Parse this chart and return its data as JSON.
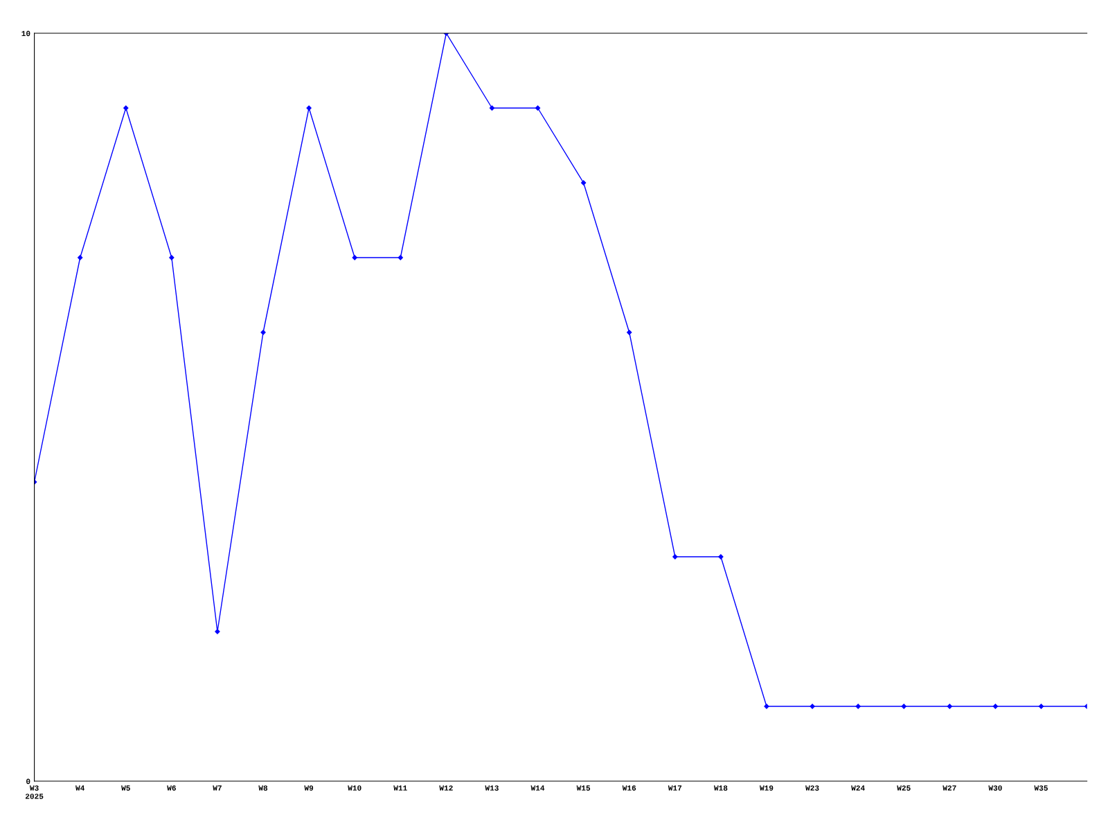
{
  "chart_data": {
    "type": "line",
    "categories": [
      "W3\n2025",
      "W4",
      "W5",
      "W6",
      "W7",
      "W8",
      "W9",
      "W10",
      "W11",
      "W12",
      "W13",
      "W14",
      "W15",
      "W16",
      "W17",
      "W18",
      "W19",
      "W23",
      "W24",
      "W25",
      "W27",
      "W30",
      "W35",
      null
    ],
    "series": [
      {
        "color": "#0000ff",
        "values": [
          4,
          7,
          9,
          7,
          2,
          6,
          9,
          7,
          7,
          10,
          9,
          9,
          8,
          6,
          3,
          3,
          1,
          1,
          1,
          1,
          1,
          1,
          1,
          1
        ]
      }
    ],
    "ylim": [
      0,
      10
    ],
    "yticks": [
      0,
      10
    ],
    "grid": false,
    "legend": false,
    "marker": "diamond",
    "line_style": "solid"
  }
}
